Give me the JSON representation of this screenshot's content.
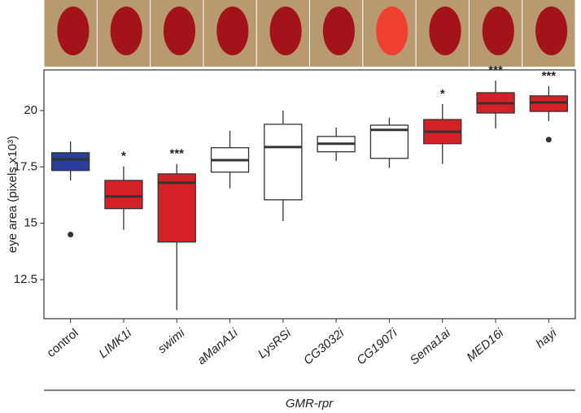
{
  "chart_data": {
    "type": "box",
    "ylabel": "eye area (pixels x10³)",
    "xlabel": "GMR-rpr",
    "categories": [
      "control",
      "LIMK1i",
      "swimi",
      "aManA1i",
      "LysRSi",
      "CG3032i",
      "CG1907i",
      "Sema1ai",
      "MED16i",
      "hayi"
    ],
    "label_italic": [
      false,
      true,
      true,
      true,
      true,
      true,
      true,
      true,
      true,
      true
    ],
    "ylim": [
      10.77,
      21.8
    ],
    "yticks": [
      12.5,
      15,
      17.5,
      20
    ],
    "boxes": [
      {
        "low": 16.9,
        "q1": 17.34,
        "median": 17.84,
        "q3": 18.13,
        "high": 18.63,
        "outliers": [
          14.5
        ],
        "color": "#2a3d98"
      },
      {
        "low": 14.71,
        "q1": 15.65,
        "median": 16.19,
        "q3": 16.9,
        "high": 17.52,
        "outliers": [],
        "color": "#d42027"
      },
      {
        "low": 11.15,
        "q1": 14.17,
        "median": 16.8,
        "q3": 17.19,
        "high": 17.63,
        "outliers": [],
        "color": "#d42027"
      },
      {
        "low": 16.55,
        "q1": 17.27,
        "median": 17.8,
        "q3": 18.35,
        "high": 19.1,
        "outliers": [],
        "color": "#ffffff"
      },
      {
        "low": 15.1,
        "q1": 16.04,
        "median": 18.38,
        "q3": 19.39,
        "high": 20.0,
        "outliers": [],
        "color": "#ffffff"
      },
      {
        "low": 17.77,
        "q1": 18.17,
        "median": 18.53,
        "q3": 18.85,
        "high": 19.24,
        "outliers": [],
        "color": "#ffffff"
      },
      {
        "low": 17.45,
        "q1": 17.88,
        "median": 19.14,
        "q3": 19.35,
        "high": 19.68,
        "outliers": [],
        "color": "#ffffff"
      },
      {
        "low": 17.63,
        "q1": 18.53,
        "median": 19.06,
        "q3": 19.6,
        "high": 20.29,
        "outliers": [],
        "color": "#d42027"
      },
      {
        "low": 19.21,
        "q1": 19.89,
        "median": 20.32,
        "q3": 20.79,
        "high": 21.33,
        "outliers": [],
        "color": "#d42027"
      },
      {
        "low": 19.53,
        "q1": 19.96,
        "median": 20.36,
        "q3": 20.65,
        "high": 21.08,
        "outliers": [
          18.71
        ],
        "color": "#d42027"
      }
    ],
    "annotations": [
      null,
      "*",
      "***",
      null,
      null,
      null,
      null,
      "*",
      "***",
      "***"
    ]
  }
}
